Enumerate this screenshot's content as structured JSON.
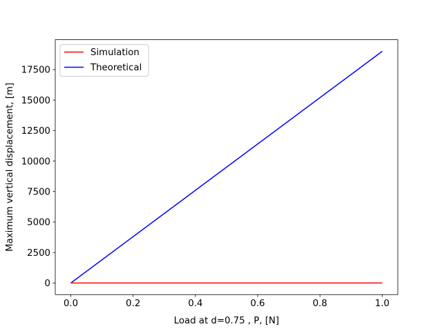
{
  "chart_data": {
    "type": "line",
    "xlabel": "Load at d=0.75 , P, [N]",
    "ylabel": "Maximum vertical displacement, [m]",
    "xlim": [
      -0.05,
      1.05
    ],
    "ylim": [
      -950,
      19950
    ],
    "xticks": [
      0.0,
      0.2,
      0.4,
      0.6,
      0.8,
      1.0
    ],
    "xtick_labels": [
      "0.0",
      "0.2",
      "0.4",
      "0.6",
      "0.8",
      "1.0"
    ],
    "yticks": [
      0,
      2500,
      5000,
      7500,
      10000,
      12500,
      15000,
      17500
    ],
    "ytick_labels": [
      "0",
      "2500",
      "5000",
      "7500",
      "10000",
      "12500",
      "15000",
      "17500"
    ],
    "grid": false,
    "legend_position": "upper-left",
    "series": [
      {
        "name": "Simulation",
        "color": "#ff0000",
        "x": [
          0.0,
          1.0
        ],
        "y": [
          0,
          0
        ]
      },
      {
        "name": "Theoretical",
        "color": "#0000ff",
        "x": [
          0.0,
          1.0
        ],
        "y": [
          0,
          19000
        ]
      }
    ]
  }
}
